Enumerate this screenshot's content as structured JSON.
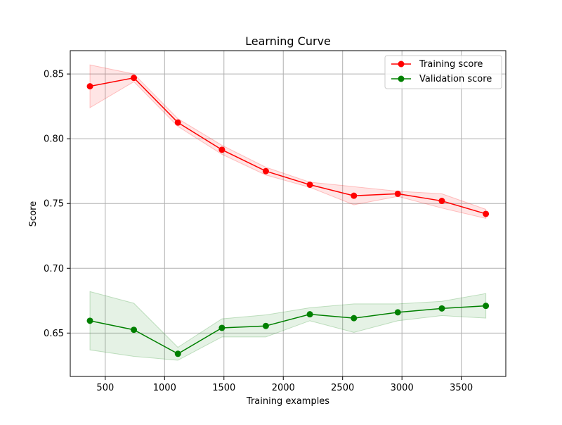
{
  "chart_data": {
    "type": "line",
    "title": "Learning Curve",
    "xlabel": "Training examples",
    "ylabel": "Score",
    "xlim": [
      205,
      3875
    ],
    "ylim": [
      0.6165,
      0.868
    ],
    "grid": true,
    "legend": "top-right",
    "x_ticks": [
      500,
      1000,
      1500,
      2000,
      2500,
      3000,
      3500
    ],
    "x_tick_labels": [
      "500",
      "1000",
      "1500",
      "2000",
      "2500",
      "3000",
      "3500"
    ],
    "y_ticks": [
      0.65,
      0.7,
      0.75,
      0.8,
      0.85
    ],
    "y_tick_labels": [
      "0.65",
      "0.70",
      "0.75",
      "0.80",
      "0.85"
    ],
    "x": [
      371,
      741,
      1112,
      1483,
      1853,
      2224,
      2595,
      2965,
      3336,
      3707
    ],
    "series": [
      {
        "name": "Training score",
        "color": "#ff0000",
        "values": [
          0.8405,
          0.847,
          0.8125,
          0.7915,
          0.775,
          0.7645,
          0.756,
          0.7575,
          0.752,
          0.742
        ],
        "band_upper": [
          0.857,
          0.85,
          0.8155,
          0.795,
          0.778,
          0.7665,
          0.763,
          0.7595,
          0.7575,
          0.7455
        ],
        "band_lower": [
          0.824,
          0.844,
          0.8095,
          0.788,
          0.772,
          0.7625,
          0.749,
          0.7555,
          0.7465,
          0.7385
        ],
        "band_fill": "rgba(255,0,0,0.1)",
        "band_edge": "rgba(255,0,0,0.22)"
      },
      {
        "name": "Validation score",
        "color": "#008000",
        "values": [
          0.6595,
          0.6525,
          0.634,
          0.654,
          0.6555,
          0.6645,
          0.6615,
          0.666,
          0.669,
          0.671
        ],
        "band_upper": [
          0.682,
          0.673,
          0.639,
          0.661,
          0.664,
          0.6695,
          0.6725,
          0.6725,
          0.6745,
          0.6805
        ],
        "band_lower": [
          0.637,
          0.632,
          0.629,
          0.647,
          0.647,
          0.6595,
          0.6505,
          0.6595,
          0.6635,
          0.6615
        ],
        "band_fill": "rgba(0,128,0,0.1)",
        "band_edge": "rgba(0,128,0,0.22)"
      }
    ]
  }
}
